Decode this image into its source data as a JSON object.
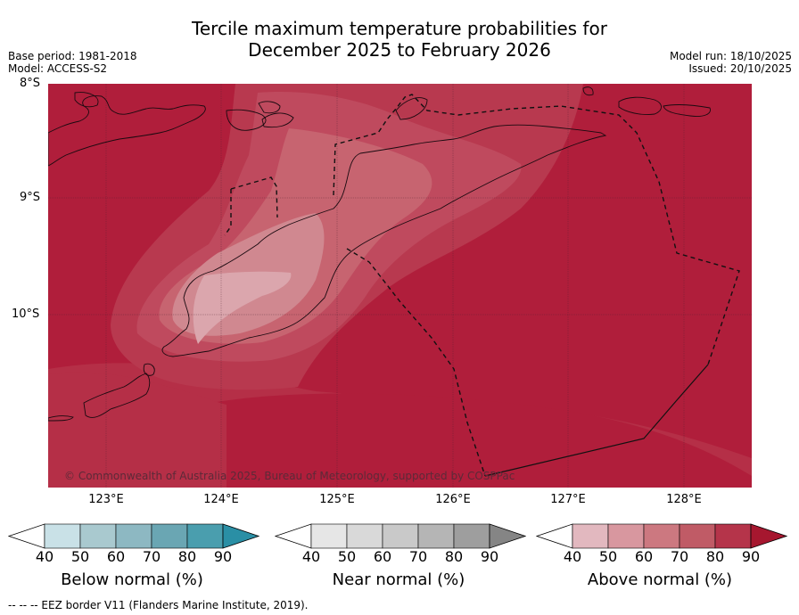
{
  "title": {
    "line1": "Tercile maximum temperature probabilities for",
    "line2": "December 2025 to February 2026"
  },
  "meta_left": {
    "base_period": "Base period: 1981-2018",
    "model": "Model: ACCESS-S2"
  },
  "meta_right": {
    "model_run": "Model run: 18/10/2025",
    "issued": "Issued: 20/10/2025"
  },
  "map": {
    "lat_labels": [
      "8°S",
      "9°S",
      "10°S"
    ],
    "lon_labels": [
      "123°E",
      "124°E",
      "125°E",
      "126°E",
      "127°E",
      "128°E"
    ],
    "copyright": "© Commonwealth of Australia 2025, Bureau of Meteorology, supported by COSPPac"
  },
  "colorbars": [
    {
      "label": "Below normal (%)",
      "ticks": [
        "40",
        "50",
        "60",
        "70",
        "80",
        "90"
      ],
      "colors": [
        "#ffffff",
        "#c9e1e7",
        "#a9c9cf",
        "#8db8c2",
        "#6aa6b3",
        "#4a9eae",
        "#2a8fa5"
      ]
    },
    {
      "label": "Near normal (%)",
      "ticks": [
        "40",
        "50",
        "60",
        "70",
        "80",
        "90"
      ],
      "colors": [
        "#ffffff",
        "#e6e6e6",
        "#d9d9d9",
        "#c9c9c9",
        "#b5b5b5",
        "#9e9e9e",
        "#858585"
      ]
    },
    {
      "label": "Above normal (%)",
      "ticks": [
        "40",
        "50",
        "60",
        "70",
        "80",
        "90"
      ],
      "colors": [
        "#ffffff",
        "#e2b8bf",
        "#d8979f",
        "#cc7880",
        "#c05b66",
        "#b5344a",
        "#a6172f"
      ]
    }
  ],
  "footnote": "--  --  -- EEZ border V11 (Flanders Marine Institute, 2019)."
}
